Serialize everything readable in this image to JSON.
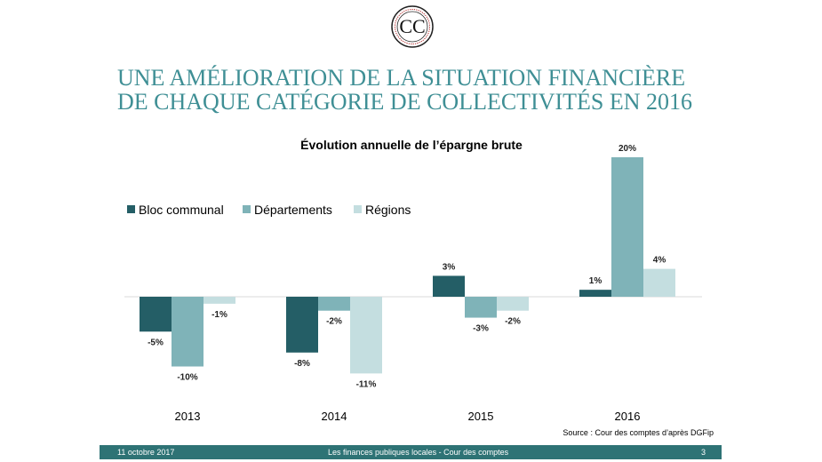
{
  "slide": {
    "title_line1": "UNE AMÉLIORATION DE LA SITUATION FINANCIÈRE",
    "title_line2": "DE CHAQUE CATÉGORIE DE COLLECTIVITÉS EN 2016",
    "source": "Source : Cour des comptes d’après DGFip"
  },
  "logo": {
    "name": "cour-des-comptes-seal",
    "text": "CC"
  },
  "footer": {
    "date": "11 octobre 2017",
    "center": "Les finances publiques locales - Cour des comptes",
    "page": "3",
    "color": "#2e7375"
  },
  "chart_data": {
    "type": "bar",
    "title": "Évolution annuelle de l’épargne brute",
    "categories": [
      "2013",
      "2014",
      "2015",
      "2016"
    ],
    "series": [
      {
        "name": "Bloc communal",
        "values": [
          -5,
          -8,
          3,
          1
        ],
        "labels": [
          "-5%",
          "-8%",
          "3%",
          "1%"
        ],
        "color": "#245e66"
      },
      {
        "name": "Départements",
        "values": [
          -10,
          -2,
          -3,
          20
        ],
        "labels": [
          "-10%",
          "-2%",
          "-3%",
          "20%"
        ],
        "color": "#7fb3b8"
      },
      {
        "name": "Régions",
        "values": [
          -1,
          -11,
          -2,
          4
        ],
        "labels": [
          "-1%",
          "-11%",
          "-2%",
          "4%"
        ],
        "color": "#c4dee0"
      }
    ],
    "legend_position": "top-left",
    "grid": false
  }
}
